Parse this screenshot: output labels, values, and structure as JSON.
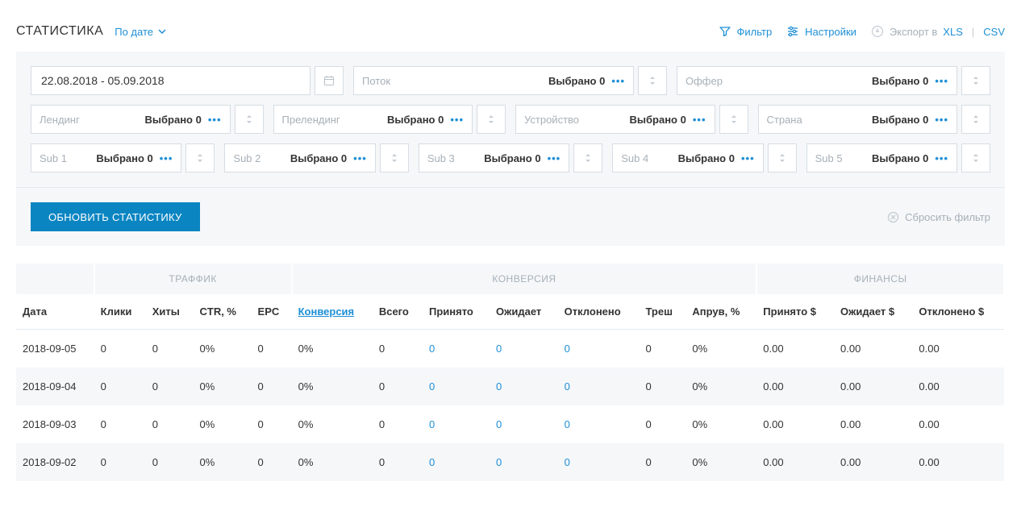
{
  "colors": {
    "accent": "#1e8fd6",
    "muted": "#a7b0b8",
    "panel_bg": "#f5f7f9",
    "border": "#d6dde3",
    "primary_btn": "#0a85c2"
  },
  "header": {
    "title": "СТАТИСТИКА",
    "dropdown_label": "По дате",
    "filter_label": "Фильтр",
    "settings_label": "Настройки",
    "export_label": "Экспорт в",
    "export_xls": "XLS",
    "export_csv": "CSV"
  },
  "filters": {
    "date_range": "22.08.2018 - 05.09.2018",
    "selected_tpl": "Выбрано 0",
    "row1": [
      {
        "label": "Поток",
        "value": "Выбрано 0"
      },
      {
        "label": "Оффер",
        "value": "Выбрано 0"
      }
    ],
    "row2": [
      {
        "label": "Лендинг",
        "value": "Выбрано 0"
      },
      {
        "label": "Прелендинг",
        "value": "Выбрано 0"
      },
      {
        "label": "Устройство",
        "value": "Выбрано 0"
      },
      {
        "label": "Страна",
        "value": "Выбрано 0"
      }
    ],
    "row3": [
      {
        "label": "Sub 1",
        "value": "Выбрано 0"
      },
      {
        "label": "Sub 2",
        "value": "Выбрано 0"
      },
      {
        "label": "Sub 3",
        "value": "Выбрано 0"
      },
      {
        "label": "Sub 4",
        "value": "Выбрано 0"
      },
      {
        "label": "Sub 5",
        "value": "Выбрано 0"
      }
    ],
    "update_btn": "ОБНОВИТЬ СТАТИСТИКУ",
    "reset_btn": "Сбросить фильтр"
  },
  "table": {
    "groups": [
      {
        "label": "",
        "span": 1
      },
      {
        "label": "ТРАФФИК",
        "span": 4
      },
      {
        "label": "КОНВЕРСИЯ",
        "span": 7
      },
      {
        "label": "ФИНАНСЫ",
        "span": 3
      }
    ],
    "columns": [
      {
        "label": "Дата"
      },
      {
        "label": "Клики"
      },
      {
        "label": "Хиты"
      },
      {
        "label": "CTR, %"
      },
      {
        "label": "EPC"
      },
      {
        "label": "Конверсия",
        "link": true
      },
      {
        "label": "Всего"
      },
      {
        "label": "Принято"
      },
      {
        "label": "Ожидает"
      },
      {
        "label": "Отклонено"
      },
      {
        "label": "Треш"
      },
      {
        "label": "Апрув, %"
      },
      {
        "label": "Принято $"
      },
      {
        "label": "Ожидает $"
      },
      {
        "label": "Отклонено $"
      }
    ],
    "link_cols": [
      7,
      8,
      9
    ],
    "rows": [
      [
        "2018-09-05",
        "0",
        "0",
        "0%",
        "0",
        "0%",
        "0",
        "0",
        "0",
        "0",
        "0",
        "0%",
        "0.00",
        "0.00",
        "0.00"
      ],
      [
        "2018-09-04",
        "0",
        "0",
        "0%",
        "0",
        "0%",
        "0",
        "0",
        "0",
        "0",
        "0",
        "0%",
        "0.00",
        "0.00",
        "0.00"
      ],
      [
        "2018-09-03",
        "0",
        "0",
        "0%",
        "0",
        "0%",
        "0",
        "0",
        "0",
        "0",
        "0",
        "0%",
        "0.00",
        "0.00",
        "0.00"
      ],
      [
        "2018-09-02",
        "0",
        "0",
        "0%",
        "0",
        "0%",
        "0",
        "0",
        "0",
        "0",
        "0",
        "0%",
        "0.00",
        "0.00",
        "0.00"
      ]
    ]
  }
}
